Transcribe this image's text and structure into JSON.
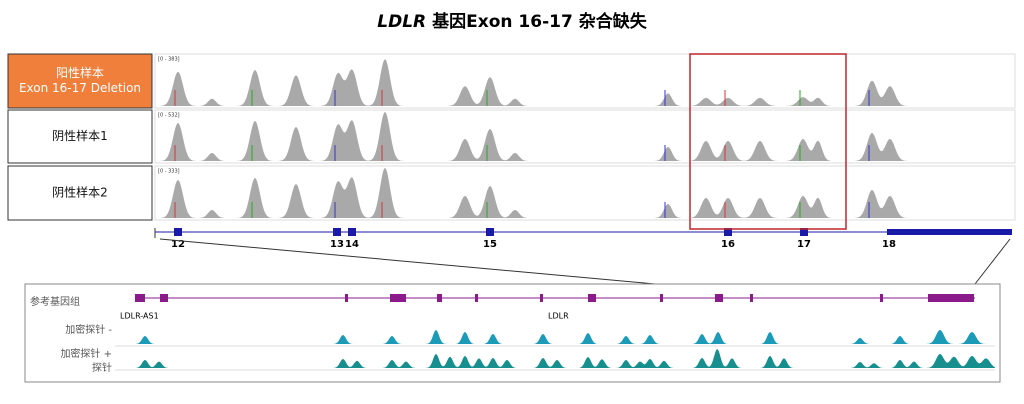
{
  "title": {
    "gene": "LDLR",
    "text": "基因Exon 16-17 杂合缺失"
  },
  "samples": [
    {
      "label": [
        "阳性样本",
        "Exon 16-17 Deletion"
      ],
      "range": "[0 - 383]"
    },
    {
      "label": [
        "阴性样本1"
      ],
      "range": "[0 - 532]"
    },
    {
      "label": [
        "阴性样本2"
      ],
      "range": "[0 - 333]"
    }
  ],
  "exons": [
    "12",
    "13",
    "14",
    "15",
    "16",
    "17",
    "18"
  ],
  "reference": {
    "label": "参考基因组",
    "genes": [
      "LDLR-AS1",
      "LDLR"
    ]
  },
  "probes": [
    {
      "label": [
        "加密探针 -"
      ]
    },
    {
      "label": [
        "加密探针 +",
        "探针"
      ]
    }
  ]
}
